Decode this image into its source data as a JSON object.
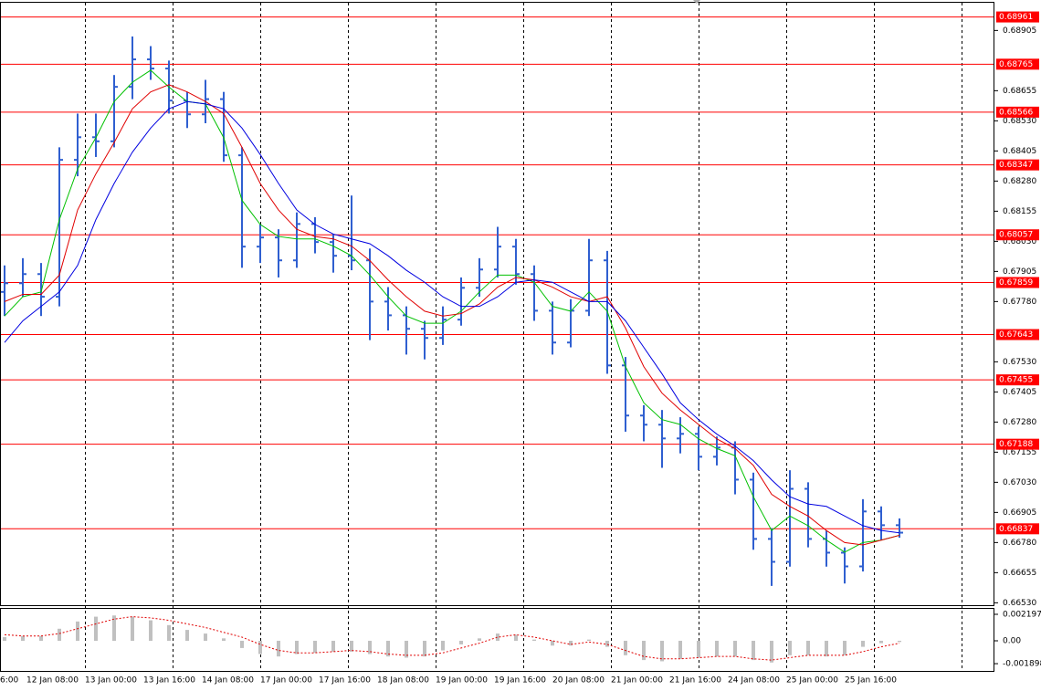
{
  "chart_data": {
    "type": "ohlc",
    "bar_color": "#2f5fd0",
    "ylim": [
      0.6652,
      0.6902
    ],
    "yticks": [
      0.68905,
      {
        "value": 0.68655,
        "label": "0.68655"
      },
      {
        "value": 0.6853,
        "label": "0.68530"
      },
      0.68405,
      {
        "value": 0.6828,
        "label": "0.68280"
      },
      0.68155,
      {
        "value": 0.6803,
        "label": "0.68030"
      },
      0.67905,
      {
        "value": 0.6778,
        "label": "0.67780"
      },
      {
        "value": 0.6753,
        "label": "0.67530"
      },
      0.67405,
      {
        "value": 0.6728,
        "label": "0.67280"
      },
      0.67155,
      {
        "value": 0.6703,
        "label": "0.67030"
      },
      0.66905,
      {
        "value": 0.6678,
        "label": "0.66780"
      },
      0.66655,
      {
        "value": 0.6653,
        "label": "0.66530"
      }
    ],
    "levels": {
      "color": "#ff0000",
      "values": [
        0.68961,
        0.68765,
        0.68566,
        0.68347,
        0.68057,
        0.67859,
        0.67643,
        0.67455,
        0.67188,
        0.66837
      ]
    },
    "x_labels": [
      "6:00",
      "12 Jan 08:00",
      "13 Jan 00:00",
      "13 Jan 16:00",
      "14 Jan 08:00",
      "17 Jan 00:00",
      "17 Jan 16:00",
      "18 Jan 08:00",
      "19 Jan 00:00",
      "19 Jan 16:00",
      "20 Jan 08:00",
      "21 Jan 00:00",
      "21 Jan 16:00",
      "24 Jan 08:00",
      "25 Jan 00:00",
      "25 Jan 16:00"
    ],
    "ohlc": {
      "open": [
        0.6782,
        0.67856,
        0.67894,
        0.678,
        0.68368,
        0.68462,
        0.68445,
        0.68671,
        0.68785,
        0.68747,
        0.68614,
        0.68557,
        0.6862,
        0.68387,
        0.68008,
        0.68046,
        0.67951,
        0.68102,
        0.68027,
        0.6797,
        0.67951,
        0.6778,
        0.67723,
        0.67667,
        0.67629,
        0.67705,
        0.67837,
        0.67913,
        0.68008,
        0.67894,
        0.67742,
        0.6761,
        0.67742,
        0.67951,
        0.67515,
        0.67307,
        0.67269,
        0.67212,
        0.67231,
        0.67136,
        0.67174,
        0.67041,
        0.66795,
        0.667,
        0.67003,
        0.66795,
        0.66738,
        0.66681,
        0.66909,
        0.66852
      ],
      "high": [
        0.6793,
        0.6796,
        0.6794,
        0.6842,
        0.6856,
        0.6856,
        0.6872,
        0.6888,
        0.6884,
        0.6878,
        0.6865,
        0.687,
        0.6865,
        0.6842,
        0.681,
        0.6808,
        0.6815,
        0.6813,
        0.6806,
        0.6822,
        0.68,
        0.6784,
        0.6776,
        0.677,
        0.6776,
        0.6788,
        0.6796,
        0.6809,
        0.6804,
        0.6793,
        0.6778,
        0.6779,
        0.6804,
        0.6799,
        0.6755,
        0.6735,
        0.6733,
        0.673,
        0.6726,
        0.6722,
        0.672,
        0.6707,
        0.6684,
        0.6708,
        0.6703,
        0.6683,
        0.6676,
        0.6696,
        0.6693,
        0.6688
      ],
      "low": [
        0.6772,
        0.678,
        0.6772,
        0.6776,
        0.683,
        0.6838,
        0.6842,
        0.6862,
        0.687,
        0.6856,
        0.685,
        0.6852,
        0.6836,
        0.6792,
        0.6794,
        0.6788,
        0.6792,
        0.6798,
        0.679,
        0.6791,
        0.6762,
        0.6766,
        0.6756,
        0.6754,
        0.676,
        0.6768,
        0.678,
        0.6788,
        0.6785,
        0.677,
        0.6756,
        0.6759,
        0.6772,
        0.6748,
        0.6724,
        0.672,
        0.6709,
        0.6715,
        0.6708,
        0.671,
        0.6698,
        0.6675,
        0.666,
        0.6668,
        0.6676,
        0.6668,
        0.6661,
        0.6666,
        0.6679,
        0.668
      ],
      "close": [
        0.67856,
        0.67894,
        0.678,
        0.68368,
        0.68462,
        0.68445,
        0.68671,
        0.68785,
        0.68747,
        0.68614,
        0.68557,
        0.6862,
        0.68387,
        0.68008,
        0.68046,
        0.67951,
        0.68102,
        0.68027,
        0.6797,
        0.67951,
        0.6778,
        0.67723,
        0.67667,
        0.67629,
        0.67705,
        0.67837,
        0.67913,
        0.68008,
        0.67894,
        0.67742,
        0.6761,
        0.67742,
        0.67951,
        0.67515,
        0.67307,
        0.67269,
        0.67212,
        0.67231,
        0.67136,
        0.67174,
        0.67041,
        0.66795,
        0.667,
        0.67003,
        0.66795,
        0.66738,
        0.66681,
        0.66909,
        0.66852,
        0.66821
      ]
    },
    "lines": [
      {
        "color": "#00c000",
        "values": [
          0.6772,
          0.678,
          0.6782,
          0.6812,
          0.6833,
          0.6846,
          0.6861,
          0.6869,
          0.6874,
          0.6867,
          0.6861,
          0.686,
          0.6846,
          0.682,
          0.681,
          0.6805,
          0.6804,
          0.6804,
          0.6801,
          0.6797,
          0.6789,
          0.678,
          0.6772,
          0.6769,
          0.6769,
          0.6774,
          0.6782,
          0.6789,
          0.6789,
          0.6786,
          0.6776,
          0.6774,
          0.6782,
          0.6774,
          0.6751,
          0.6736,
          0.6729,
          0.6727,
          0.6721,
          0.6717,
          0.6714,
          0.6697,
          0.6683,
          0.6689,
          0.6685,
          0.6679,
          0.6674,
          0.6678,
          0.6679,
          0.6681
        ]
      },
      {
        "color": "#e00000",
        "values": [
          0.6778,
          0.6781,
          0.6781,
          0.6789,
          0.6816,
          0.6831,
          0.6844,
          0.6858,
          0.6865,
          0.6868,
          0.6865,
          0.6861,
          0.6856,
          0.6842,
          0.6827,
          0.6816,
          0.6808,
          0.6805,
          0.6804,
          0.6801,
          0.6795,
          0.6787,
          0.678,
          0.6774,
          0.6772,
          0.6773,
          0.6777,
          0.6784,
          0.6788,
          0.6787,
          0.6784,
          0.678,
          0.6778,
          0.678,
          0.6767,
          0.6751,
          0.674,
          0.6733,
          0.6727,
          0.6721,
          0.6717,
          0.671,
          0.6698,
          0.6693,
          0.6689,
          0.6683,
          0.6678,
          0.6677,
          0.6679,
          0.6681
        ]
      },
      {
        "color": "#0000e0",
        "values": [
          0.6761,
          0.677,
          0.6776,
          0.6782,
          0.6793,
          0.6812,
          0.6827,
          0.684,
          0.685,
          0.6858,
          0.6861,
          0.686,
          0.6858,
          0.685,
          0.6839,
          0.6827,
          0.6816,
          0.681,
          0.6806,
          0.6804,
          0.6802,
          0.6797,
          0.6791,
          0.6786,
          0.678,
          0.6776,
          0.6776,
          0.678,
          0.6786,
          0.6787,
          0.6786,
          0.6782,
          0.6778,
          0.6778,
          0.677,
          0.6759,
          0.6748,
          0.6736,
          0.6729,
          0.6723,
          0.6718,
          0.6712,
          0.6704,
          0.6697,
          0.6694,
          0.6693,
          0.6689,
          0.6685,
          0.6683,
          0.6682
        ]
      }
    ],
    "oscillator": {
      "ylim": [
        -0.0025,
        0.00265
      ],
      "yticks": [
        0.002197,
        {
          "value": 0,
          "label": "0.00"
        },
        -0.001898
      ],
      "histogram": {
        "color": "#c0c0c0",
        "values": [
          0.0003,
          0.0004,
          0.0004,
          0.001,
          0.0016,
          0.002,
          0.0021,
          0.002,
          0.0017,
          0.0013,
          0.0009,
          0.0006,
          0.0002,
          -0.0006,
          -0.0011,
          -0.0013,
          -0.0011,
          -0.001,
          -0.0009,
          -0.0009,
          -0.0011,
          -0.0013,
          -0.0014,
          -0.0013,
          -0.0008,
          -0.0003,
          0.0002,
          0.0006,
          0.0005,
          0.0001,
          -0.0004,
          -0.0004,
          0.0001,
          -0.0005,
          -0.0012,
          -0.0016,
          -0.0017,
          -0.0015,
          -0.0014,
          -0.0013,
          -0.0013,
          -0.0016,
          -0.0018,
          -0.0012,
          -0.0012,
          -0.0013,
          -0.0012,
          -0.0005,
          -0.0002,
          -0.0001
        ]
      },
      "signal": {
        "color": "#e00000",
        "values": [
          0.0005,
          0.0004,
          0.0004,
          0.0006,
          0.001,
          0.0014,
          0.0018,
          0.002,
          0.0019,
          0.0017,
          0.0014,
          0.0011,
          0.0007,
          0.0003,
          -0.0003,
          -0.0008,
          -0.001,
          -0.001,
          -0.0009,
          -0.0008,
          -0.0009,
          -0.0011,
          -0.0012,
          -0.0012,
          -0.001,
          -0.0006,
          -0.0002,
          0.0003,
          0.0005,
          0.0003,
          0.0,
          -0.0003,
          -0.0001,
          -0.0003,
          -0.0008,
          -0.0013,
          -0.0015,
          -0.0015,
          -0.0014,
          -0.0013,
          -0.0013,
          -0.0015,
          -0.0016,
          -0.0014,
          -0.0012,
          -0.0012,
          -0.0012,
          -0.0009,
          -0.0005,
          -0.0002
        ]
      }
    }
  }
}
